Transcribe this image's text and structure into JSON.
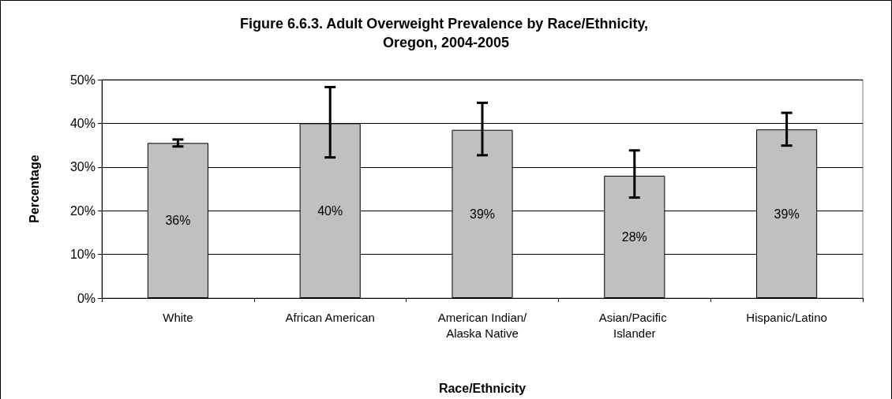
{
  "chart_data": {
    "type": "bar",
    "title": "Figure 6.6.3. Adult Overweight Prevalence by Race/Ethnicity, Oregon, 2004-2005",
    "xlabel": "Race/Ethnicity",
    "ylabel": "Percentage",
    "categories": [
      "White",
      "African American",
      "American Indian/Alaska Native",
      "Asian/Pacific Islander",
      "Hispanic/Latino"
    ],
    "values": [
      35.5,
      40,
      38.5,
      28,
      38.6
    ],
    "color": "#c0c0c0",
    "errors": [
      [
        34.7,
        36.3
      ],
      [
        32.2,
        48.3
      ],
      [
        32.7,
        44.7
      ],
      [
        23,
        33.8
      ],
      [
        34.9,
        42.4
      ]
    ],
    "value_labels": [
      "36%",
      "40%",
      "39%",
      "28%",
      "39%"
    ],
    "ylim": [
      0,
      50
    ],
    "yticks": [
      {
        "value": 0,
        "label": "0%"
      },
      {
        "value": 10,
        "label": "10%"
      },
      {
        "value": 20,
        "label": "20%"
      },
      {
        "value": 30,
        "label": "30%"
      },
      {
        "value": 40,
        "label": "40%"
      },
      {
        "value": 50,
        "label": "50%"
      }
    ],
    "grid": "y",
    "legend": false
  }
}
